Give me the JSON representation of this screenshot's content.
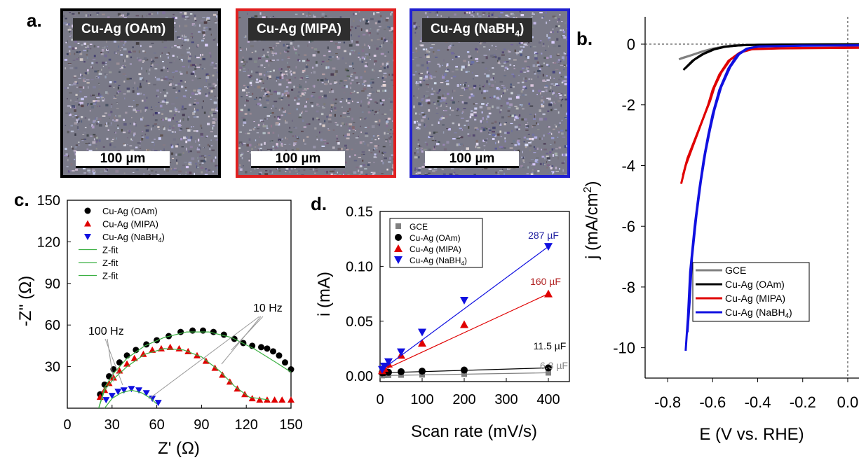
{
  "panel_a": {
    "label": "a.",
    "images": [
      {
        "title": "Cu-Ag (OAm)",
        "scale_bar": "100 µm",
        "border_color": "#000000"
      },
      {
        "title": "Cu-Ag (MIPA)",
        "scale_bar": "100 µm",
        "border_color": "#e02020"
      },
      {
        "title": "Cu-Ag (NaBH",
        "title_sub": "4",
        "title_end": ")",
        "scale_bar": "100 µm",
        "border_color": "#2020d0"
      }
    ]
  },
  "colors": {
    "gce": "#808080",
    "oam": "#000000",
    "mipa": "#e00000",
    "nabh4": "#1010e0",
    "fit": "#3cb043"
  },
  "chart_data": [
    {
      "id": "b",
      "label": "b.",
      "type": "line",
      "xlabel": "E (V vs. RHE)",
      "ylabel": "j (mA/cm",
      "ylabel_sup": "2",
      "ylabel_end": ")",
      "xlim": [
        -0.9,
        0.05
      ],
      "ylim": [
        -11,
        0.9
      ],
      "xticks": [
        -0.8,
        -0.6,
        -0.4,
        -0.2,
        0.0
      ],
      "xtick_labels": [
        "-0.8",
        "-0.6",
        "-0.4",
        "-0.2",
        "0.0"
      ],
      "yticks": [
        0,
        -2,
        -4,
        -6,
        -8,
        -10
      ],
      "ytick_labels": [
        "0",
        "-2",
        "-4",
        "-6",
        "-8",
        "-10"
      ],
      "legend": "bottom-right",
      "series": [
        {
          "name": "GCE",
          "key": "gce",
          "points": [
            [
              -0.75,
              -0.5
            ],
            [
              -0.7,
              -0.38
            ],
            [
              -0.65,
              -0.25
            ],
            [
              -0.6,
              -0.15
            ],
            [
              -0.55,
              -0.08
            ],
            [
              -0.5,
              -0.04
            ],
            [
              -0.4,
              -0.02
            ],
            [
              -0.2,
              -0.01
            ],
            [
              0.05,
              0
            ]
          ]
        },
        {
          "name": "Cu-Ag (OAm)",
          "key": "oam",
          "points": [
            [
              -0.73,
              -0.85
            ],
            [
              -0.69,
              -0.55
            ],
            [
              -0.65,
              -0.35
            ],
            [
              -0.6,
              -0.18
            ],
            [
              -0.55,
              -0.09
            ],
            [
              -0.5,
              -0.05
            ],
            [
              -0.45,
              -0.03
            ],
            [
              -0.3,
              -0.02
            ],
            [
              0.05,
              -0.01
            ]
          ]
        },
        {
          "name": "Cu-Ag (MIPA)",
          "key": "mipa",
          "points": [
            [
              -0.74,
              -4.6
            ],
            [
              -0.72,
              -4.0
            ],
            [
              -0.7,
              -3.6
            ],
            [
              -0.68,
              -3.2
            ],
            [
              -0.66,
              -2.8
            ],
            [
              -0.64,
              -2.4
            ],
            [
              -0.62,
              -2.0
            ],
            [
              -0.6,
              -1.5
            ],
            [
              -0.57,
              -1.0
            ],
            [
              -0.53,
              -0.55
            ],
            [
              -0.48,
              -0.28
            ],
            [
              -0.43,
              -0.17
            ],
            [
              -0.3,
              -0.14
            ],
            [
              0.05,
              -0.12
            ]
          ]
        },
        {
          "name": "Cu-Ag (NaBH",
          "name_sub": "4",
          "name_end": ")",
          "key": "nabh4",
          "points": [
            [
              -0.72,
              -10.1
            ],
            [
              -0.71,
              -9.0
            ],
            [
              -0.7,
              -7.5
            ],
            [
              -0.68,
              -6.0
            ],
            [
              -0.66,
              -4.8
            ],
            [
              -0.64,
              -3.8
            ],
            [
              -0.62,
              -3.0
            ],
            [
              -0.6,
              -2.3
            ],
            [
              -0.57,
              -1.5
            ],
            [
              -0.53,
              -0.8
            ],
            [
              -0.49,
              -0.35
            ],
            [
              -0.45,
              -0.15
            ],
            [
              -0.4,
              -0.08
            ],
            [
              -0.2,
              -0.05
            ],
            [
              0.05,
              -0.04
            ]
          ]
        }
      ]
    },
    {
      "id": "c",
      "label": "c.",
      "type": "scatter",
      "xlabel": "Z' (Ω)",
      "ylabel": "-Z'' (Ω)",
      "xlim": [
        0,
        150
      ],
      "ylim": [
        0,
        150
      ],
      "xticks": [
        0,
        30,
        60,
        90,
        120,
        150
      ],
      "yticks": [
        30,
        60,
        90,
        120,
        150
      ],
      "legend": "top-left",
      "annotations": [
        "100 Hz",
        "10 Hz"
      ],
      "series": [
        {
          "name": "Cu-Ag (OAm)",
          "key": "oam",
          "marker": "circle",
          "points": [
            [
              22,
              10
            ],
            [
              25,
              17
            ],
            [
              28,
              23
            ],
            [
              31,
              28
            ],
            [
              35,
              33
            ],
            [
              40,
              38
            ],
            [
              46,
              42
            ],
            [
              53,
              46
            ],
            [
              60,
              49
            ],
            [
              68,
              52
            ],
            [
              76,
              55
            ],
            [
              84,
              56
            ],
            [
              91,
              56
            ],
            [
              98,
              55
            ],
            [
              105,
              53
            ],
            [
              112,
              50
            ],
            [
              118,
              47
            ],
            [
              124,
              45
            ],
            [
              130,
              44
            ],
            [
              134,
              43
            ],
            [
              138,
              41
            ],
            [
              142,
              38
            ],
            [
              146,
              33
            ],
            [
              150,
              28
            ]
          ]
        },
        {
          "name": "Cu-Ag (MIPA)",
          "key": "mipa",
          "marker": "triangle-up",
          "points": [
            [
              22,
              8
            ],
            [
              25,
              13
            ],
            [
              28,
              18
            ],
            [
              31,
              22
            ],
            [
              35,
              27
            ],
            [
              40,
              32
            ],
            [
              45,
              36
            ],
            [
              51,
              39
            ],
            [
              57,
              42
            ],
            [
              63,
              43
            ],
            [
              69,
              44
            ],
            [
              75,
              43
            ],
            [
              81,
              41
            ],
            [
              87,
              38
            ],
            [
              93,
              34
            ],
            [
              99,
              29
            ],
            [
              104,
              24
            ],
            [
              109,
              19
            ],
            [
              114,
              14
            ],
            [
              119,
              10
            ],
            [
              124,
              7
            ],
            [
              129,
              6
            ],
            [
              134,
              6
            ],
            [
              139,
              6
            ],
            [
              144,
              6
            ],
            [
              150,
              6
            ]
          ]
        },
        {
          "name": "Cu-Ag (NaBH",
          "name_sub": "4",
          "name_end": ")",
          "key": "nabh4",
          "marker": "triangle-down",
          "points": [
            [
              26,
              6
            ],
            [
              30,
              9
            ],
            [
              34,
              12
            ],
            [
              38,
              13
            ],
            [
              43,
              14
            ],
            [
              48,
              13
            ],
            [
              53,
              11
            ],
            [
              57,
              7
            ],
            [
              61,
              4
            ]
          ]
        },
        {
          "name": "Z-fit",
          "key": "fit",
          "line": true,
          "points": [
            [
              21,
              0
            ],
            [
              25,
              15
            ],
            [
              31,
              25
            ],
            [
              40,
              36
            ],
            [
              52,
              45
            ],
            [
              65,
              51
            ],
            [
              80,
              55
            ],
            [
              95,
              55
            ],
            [
              110,
              51
            ],
            [
              125,
              43
            ],
            [
              140,
              33
            ],
            [
              150,
              26
            ]
          ]
        },
        {
          "name": "Z-fit",
          "key": "fit",
          "line": true,
          "points": [
            [
              21,
              0
            ],
            [
              25,
              13
            ],
            [
              31,
              21
            ],
            [
              40,
              30
            ],
            [
              52,
              39
            ],
            [
              65,
              43
            ],
            [
              78,
              42
            ],
            [
              90,
              37
            ],
            [
              102,
              27
            ],
            [
              112,
              16
            ],
            [
              122,
              8
            ],
            [
              135,
              6
            ]
          ]
        },
        {
          "name": "Z-fit",
          "key": "fit",
          "line": true,
          "points": [
            [
              25,
              0
            ],
            [
              30,
              7
            ],
            [
              36,
              11
            ],
            [
              43,
              13
            ],
            [
              50,
              11
            ],
            [
              56,
              7
            ],
            [
              60,
              3
            ]
          ]
        }
      ]
    },
    {
      "id": "d",
      "label": "d.",
      "type": "scatter",
      "xlabel": "Scan rate (mV/s)",
      "ylabel": "i (mA)",
      "xlim": [
        0,
        450
      ],
      "ylim": [
        -0.005,
        0.15
      ],
      "xticks": [
        0,
        100,
        200,
        300,
        400
      ],
      "yticks": [
        0.0,
        0.05,
        0.1,
        0.15
      ],
      "ytick_labels": [
        "0.00",
        "0.05",
        "0.10",
        "0.15"
      ],
      "legend": "top-left",
      "x": [
        5,
        10,
        20,
        50,
        100,
        200,
        400
      ],
      "series": [
        {
          "name": "GCE",
          "key": "gce",
          "marker": "square",
          "values": [
            0.0005,
            0.0007,
            0.0008,
            0.001,
            0.0012,
            0.0018,
            0.003
          ],
          "capacitance": "6.3 µF"
        },
        {
          "name": "Cu-Ag (OAm)",
          "key": "oam",
          "marker": "circle",
          "values": [
            0.003,
            0.0032,
            0.0035,
            0.004,
            0.0045,
            0.0055,
            0.0075
          ],
          "capacitance": "11.5 µF"
        },
        {
          "name": "Cu-Ag (MIPA)",
          "key": "mipa",
          "marker": "triangle-up",
          "values": [
            0.005,
            0.007,
            0.011,
            0.019,
            0.03,
            0.047,
            0.075
          ],
          "capacitance": "160 µF"
        },
        {
          "name": "Cu-Ag (NaBH",
          "name_sub": "4",
          "name_end": ")",
          "key": "nabh4",
          "marker": "triangle-down",
          "values": [
            0.006,
            0.009,
            0.013,
            0.022,
            0.04,
            0.069,
            0.118
          ],
          "capacitance": "287 µF"
        }
      ]
    }
  ]
}
